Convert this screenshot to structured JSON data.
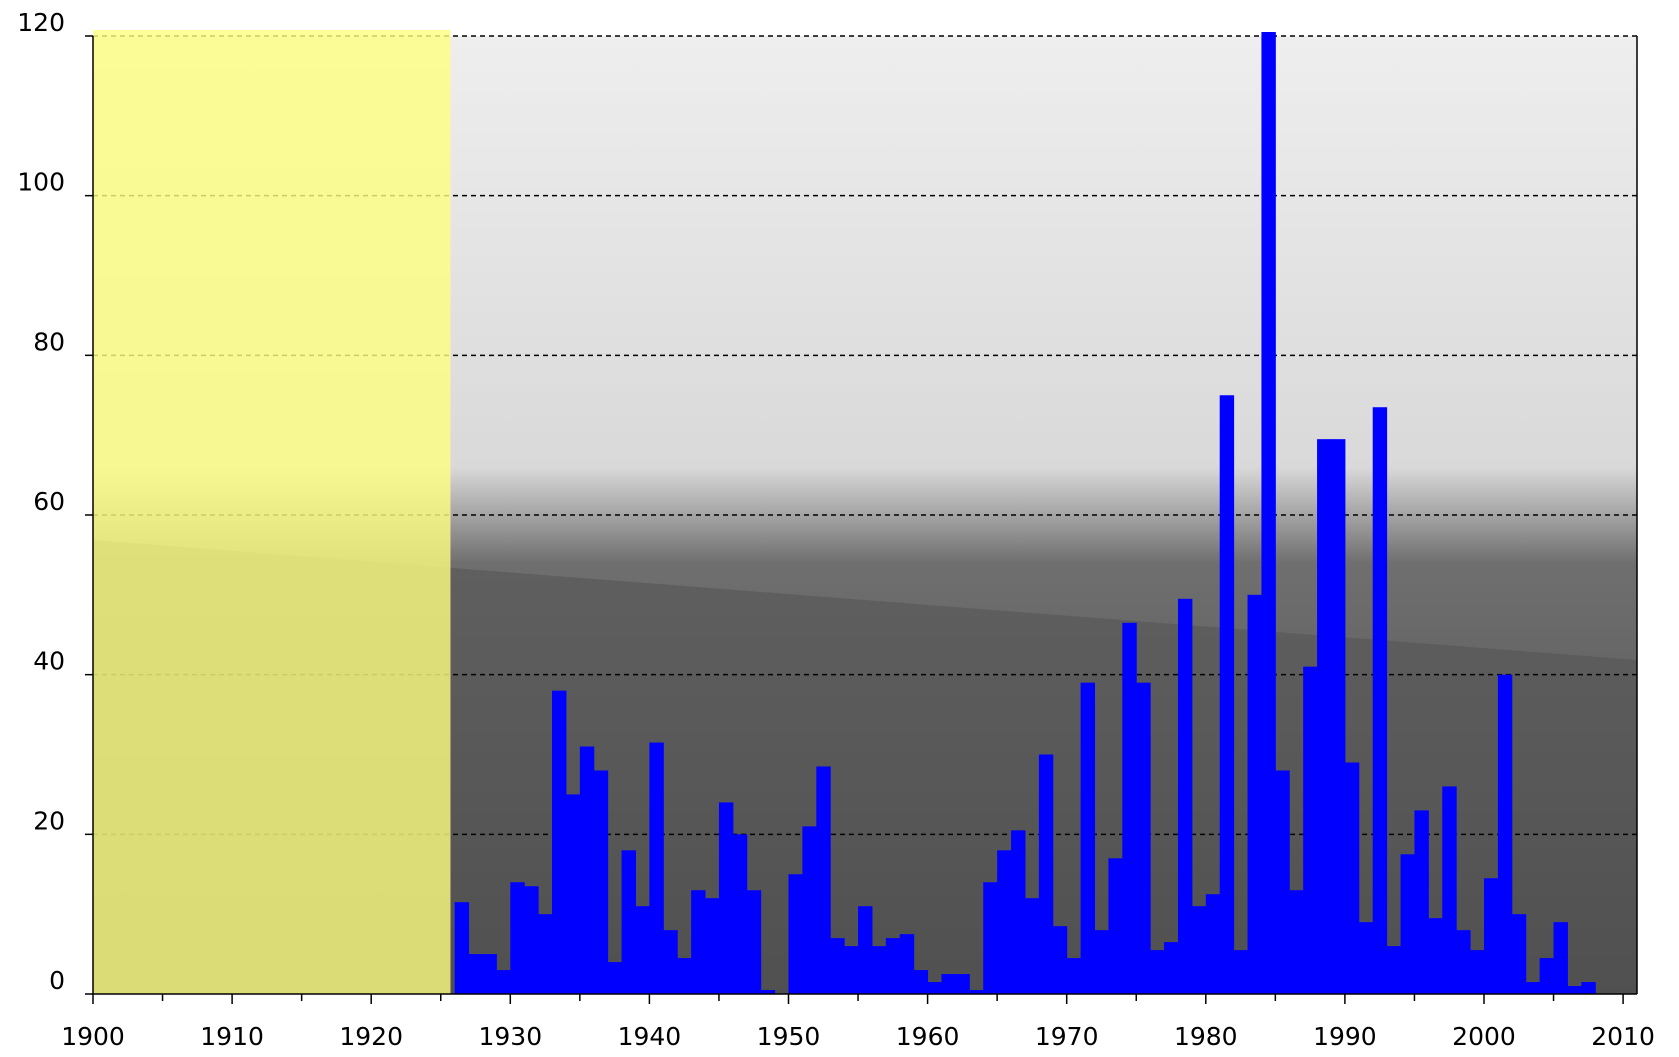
{
  "chart_data": {
    "type": "bar",
    "x": [
      1926,
      1927,
      1928,
      1929,
      1930,
      1931,
      1932,
      1933,
      1934,
      1935,
      1936,
      1937,
      1938,
      1939,
      1940,
      1941,
      1942,
      1943,
      1944,
      1945,
      1946,
      1947,
      1948,
      1949,
      1950,
      1951,
      1952,
      1953,
      1954,
      1955,
      1956,
      1957,
      1958,
      1959,
      1960,
      1961,
      1962,
      1963,
      1964,
      1965,
      1966,
      1967,
      1968,
      1969,
      1970,
      1971,
      1972,
      1973,
      1974,
      1975,
      1976,
      1977,
      1978,
      1979,
      1980,
      1981,
      1982,
      1983,
      1984,
      1985,
      1986,
      1987,
      1988,
      1989,
      1990,
      1991,
      1992,
      1993,
      1994,
      1995,
      1996,
      1997,
      1998,
      1999,
      2000,
      2001,
      2002,
      2003,
      2004,
      2005,
      2006,
      2007,
      2008
    ],
    "values": [
      11.5,
      5,
      5,
      3,
      14,
      13.5,
      10,
      38,
      25,
      31,
      28,
      4,
      18,
      11,
      31.5,
      8,
      4.5,
      13,
      12,
      24,
      20,
      13,
      0.5,
      0,
      15,
      21,
      28.5,
      7,
      6,
      11,
      6,
      7,
      7.5,
      3,
      1.5,
      2.5,
      2.5,
      0.5,
      14,
      18,
      20.5,
      12,
      30,
      8.5,
      4.5,
      39,
      8,
      17,
      46.5,
      39,
      5.5,
      6.5,
      49.5,
      11,
      12.5,
      75,
      5.5,
      50,
      120.5,
      28,
      13,
      41,
      69.5,
      69.5,
      29,
      9,
      73.5,
      6,
      17.5,
      23,
      9.5,
      26,
      8,
      5.5,
      14.5,
      40,
      10,
      1.5,
      4.5,
      9,
      1,
      1.5,
      0
    ],
    "color": "#0000ff",
    "xlim": [
      1900,
      2011
    ],
    "xticks": [
      1900,
      1910,
      1920,
      1930,
      1940,
      1950,
      1960,
      1970,
      1980,
      1990,
      2000,
      2010
    ],
    "ylim": [
      0,
      120
    ],
    "yticks": [
      0,
      20,
      40,
      60,
      80,
      100,
      120
    ],
    "grid": true,
    "shaded_range": [
      1900,
      1925.7
    ],
    "shade_color": "#ffff80"
  }
}
